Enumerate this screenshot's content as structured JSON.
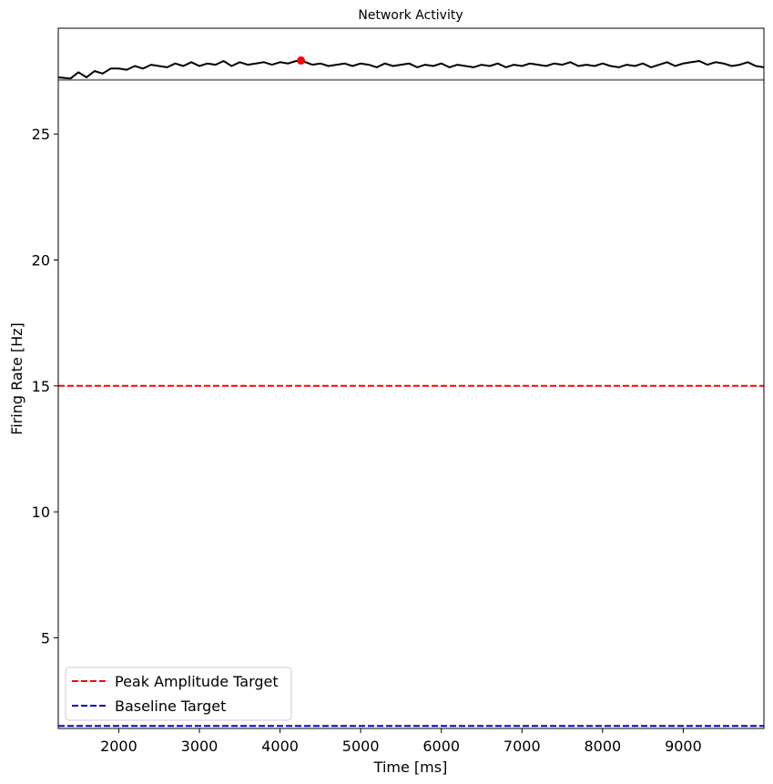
{
  "chart_data": {
    "type": "line",
    "title": "Network Activity",
    "xlabel": "Time [ms]",
    "ylabel": "Firing Rate [Hz]",
    "xlim": [
      1250,
      10000
    ],
    "ylim": [
      1.4,
      29.2
    ],
    "xticks": [
      2000,
      3000,
      4000,
      5000,
      6000,
      7000,
      8000,
      9000
    ],
    "yticks": [
      5,
      10,
      15,
      20,
      25
    ],
    "grid": false,
    "legend_position": "lower-left",
    "series": [
      {
        "color": "#000000",
        "x": [
          1250,
          1400,
          1500,
          1600,
          1700,
          1800,
          1900,
          2000,
          2100,
          2200,
          2300,
          2400,
          2500,
          2600,
          2700,
          2800,
          2900,
          3000,
          3100,
          3200,
          3300,
          3400,
          3500,
          3600,
          3700,
          3800,
          3900,
          4000,
          4100,
          4200,
          4260,
          4400,
          4500,
          4600,
          4700,
          4800,
          4900,
          5000,
          5100,
          5200,
          5300,
          5400,
          5500,
          5600,
          5700,
          5800,
          5900,
          6000,
          6100,
          6200,
          6300,
          6400,
          6500,
          6600,
          6700,
          6800,
          6900,
          7000,
          7100,
          7200,
          7300,
          7400,
          7500,
          7600,
          7700,
          7800,
          7900,
          8000,
          8100,
          8200,
          8300,
          8400,
          8500,
          8600,
          8700,
          8800,
          8900,
          9000,
          9100,
          9200,
          9300,
          9400,
          9500,
          9600,
          9700,
          9800,
          9900,
          10000
        ],
        "values": [
          27.25,
          27.2,
          27.45,
          27.25,
          27.5,
          27.4,
          27.6,
          27.6,
          27.55,
          27.7,
          27.6,
          27.75,
          27.7,
          27.65,
          27.8,
          27.7,
          27.85,
          27.7,
          27.8,
          27.75,
          27.9,
          27.7,
          27.85,
          27.75,
          27.8,
          27.85,
          27.75,
          27.85,
          27.8,
          27.9,
          27.92,
          27.75,
          27.8,
          27.7,
          27.75,
          27.8,
          27.7,
          27.8,
          27.75,
          27.65,
          27.8,
          27.7,
          27.75,
          27.8,
          27.65,
          27.75,
          27.7,
          27.8,
          27.65,
          27.75,
          27.7,
          27.65,
          27.75,
          27.7,
          27.8,
          27.65,
          27.75,
          27.7,
          27.8,
          27.75,
          27.7,
          27.8,
          27.75,
          27.85,
          27.7,
          27.75,
          27.7,
          27.8,
          27.7,
          27.65,
          27.75,
          27.7,
          27.8,
          27.65,
          27.75,
          27.85,
          27.7,
          27.8,
          27.85,
          27.9,
          27.75,
          27.85,
          27.8,
          27.7,
          27.75,
          27.85,
          27.7,
          27.65
        ]
      }
    ],
    "hlines": [
      {
        "y": 27.15,
        "color": "#808080",
        "style": "solid"
      },
      {
        "y": 15,
        "color": "#ff0000",
        "style": "dashed",
        "label": "Peak Amplitude Target"
      },
      {
        "y": 1.5,
        "color": "#0000cc",
        "style": "dashed",
        "label": "Baseline Target"
      }
    ],
    "peak_marker": {
      "x": 4260,
      "y": 27.92,
      "color": "#ff0000"
    },
    "legend": [
      {
        "label": "Peak Amplitude Target",
        "color": "#ff0000",
        "style": "dashed"
      },
      {
        "label": "Baseline Target",
        "color": "#0000cc",
        "style": "dashed"
      }
    ]
  }
}
